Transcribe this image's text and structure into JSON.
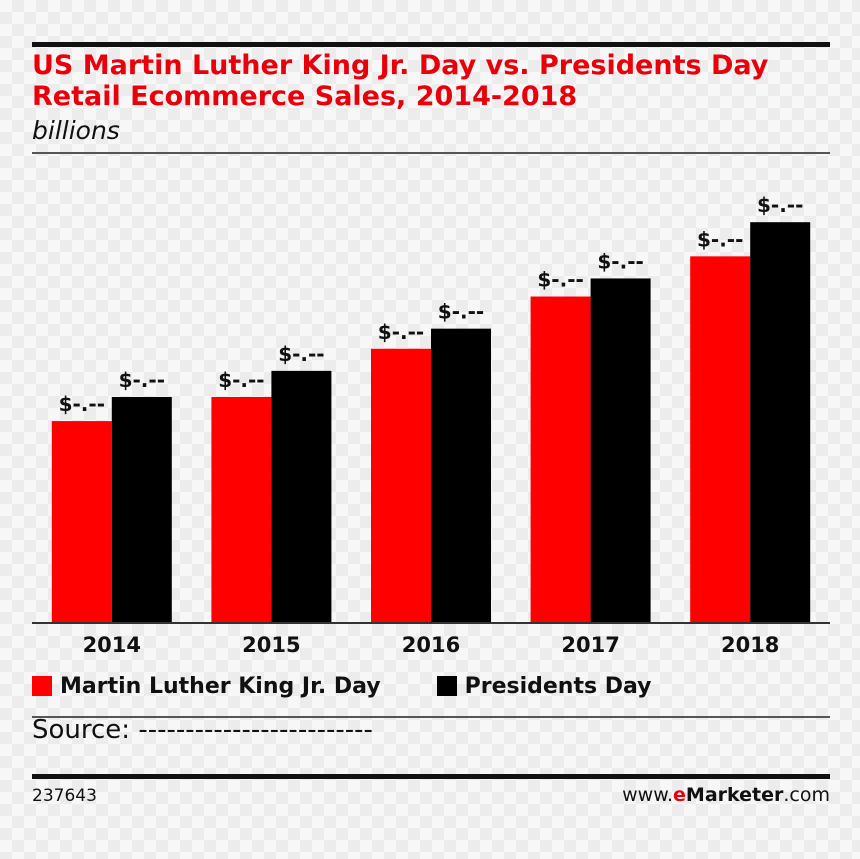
{
  "header": {
    "title_line1": "US Martin Luther King Jr. Day vs. Presidents Day",
    "title_line2": "Retail Ecommerce Sales, 2014-2018",
    "subtitle": "billions"
  },
  "chart_data": {
    "type": "bar",
    "categories": [
      "2014",
      "2015",
      "2016",
      "2017",
      "2018"
    ],
    "series": [
      {
        "name": "Martin Luther King Jr. Day",
        "color": "#ff0000",
        "values": [
          1.0,
          1.12,
          1.36,
          1.62,
          1.82
        ],
        "labels": [
          "$-.--",
          "$-.--",
          "$-.--",
          "$-.--",
          "$-.--"
        ]
      },
      {
        "name": "Presidents Day",
        "color": "#000000",
        "values": [
          1.12,
          1.25,
          1.46,
          1.71,
          1.99
        ],
        "labels": [
          "$-.--",
          "$-.--",
          "$-.--",
          "$-.--",
          "$-.--"
        ]
      }
    ],
    "ylim": [
      0,
      2.2
    ],
    "grid": false,
    "legend_position": "bottom-left"
  },
  "legend": {
    "mlk": "Martin Luther King Jr. Day",
    "presidents": "Presidents Day"
  },
  "source": "Source: -------------------------",
  "footer": {
    "chart_id": "237643",
    "brand_prefix": "www.",
    "brand_e": "e",
    "brand_name": "Marketer",
    "brand_suffix": ".com"
  }
}
